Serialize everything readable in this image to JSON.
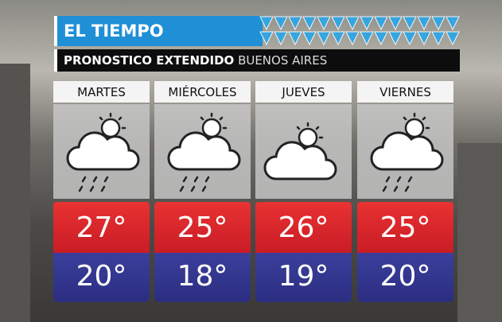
{
  "header": {
    "title": "EL TIEMPO",
    "subtitle": "PRONOSTICO EXTENDIDO",
    "location": "BUENOS AIRES"
  },
  "days": [
    {
      "name": "MARTES",
      "max": "27°",
      "min": "20°"
    },
    {
      "name": "MIÉRCOLES",
      "max": "25°",
      "min": "18°"
    },
    {
      "name": "JUEVES",
      "max": "26°",
      "min": "19°"
    },
    {
      "name": "VIERNES",
      "max": "25°",
      "min": "20°"
    }
  ]
}
